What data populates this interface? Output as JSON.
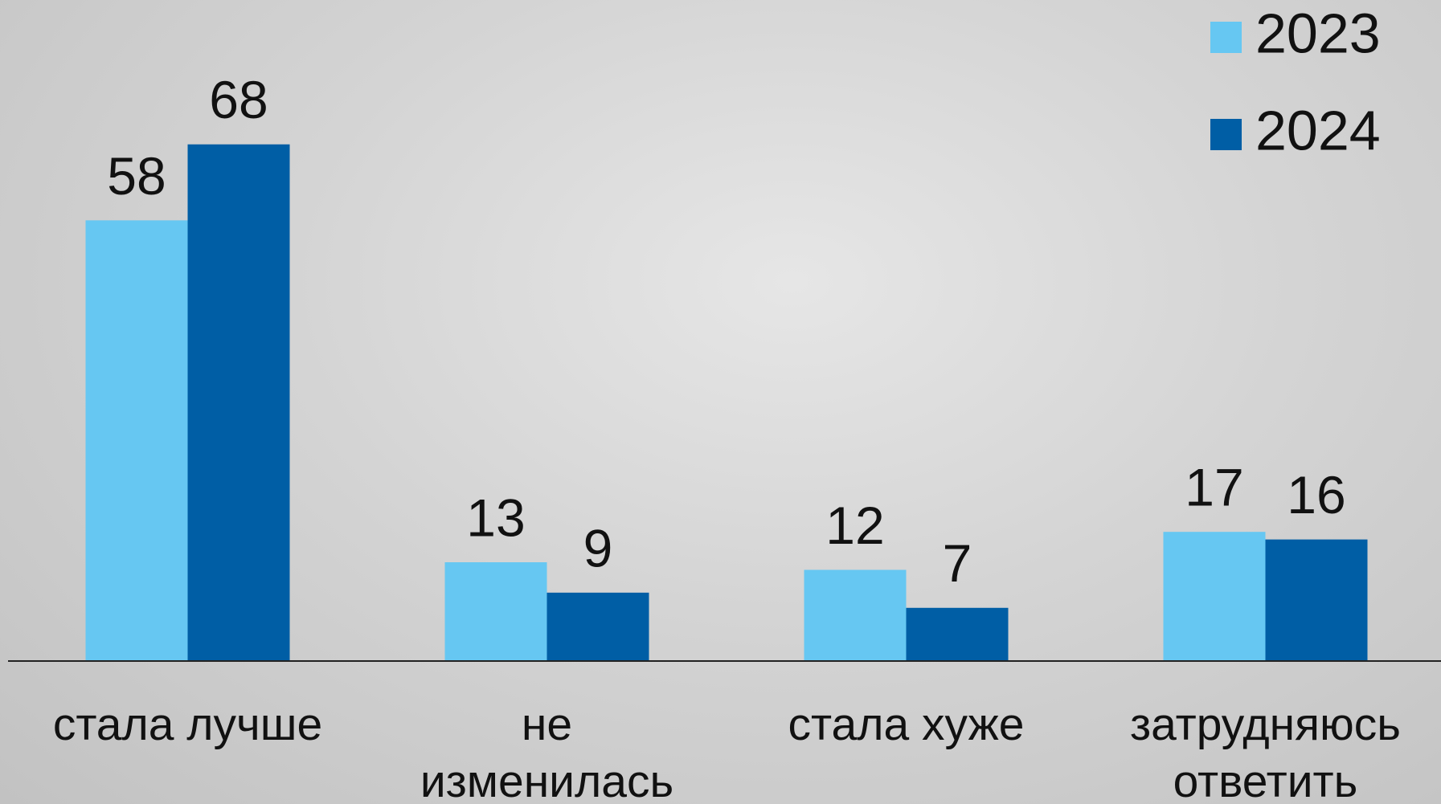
{
  "chart_data": {
    "type": "bar",
    "categories": [
      "стала лучше",
      "не\nизменилась",
      "стала хуже",
      "затрудняюсь\nответить"
    ],
    "series": [
      {
        "name": "2023",
        "color": "#66c7f2",
        "values": [
          58,
          13,
          12,
          17
        ]
      },
      {
        "name": "2024",
        "color": "#005ea5",
        "values": [
          68,
          9,
          7,
          16
        ]
      }
    ],
    "ylim": [
      0,
      87
    ],
    "legend": "top-right"
  }
}
